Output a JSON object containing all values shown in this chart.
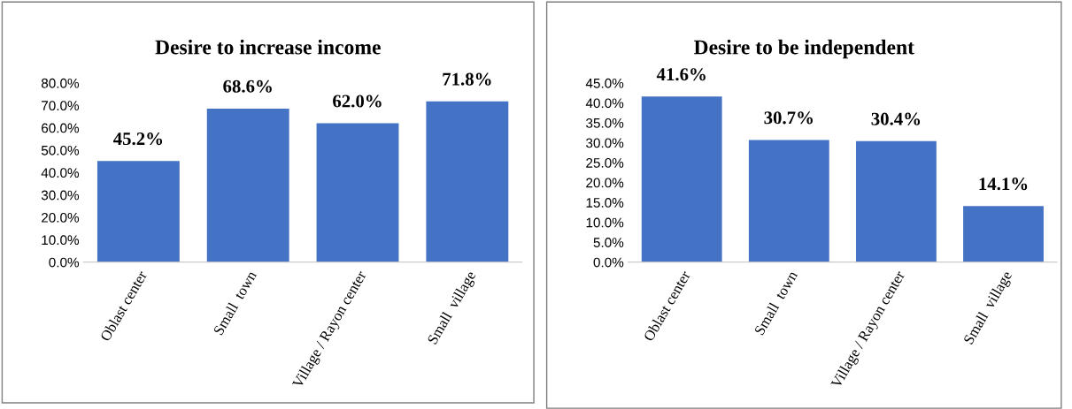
{
  "chart_data": [
    {
      "type": "bar",
      "title": "Desire to increase income",
      "categories": [
        "Oblast center",
        "Small  town",
        "Village / Rayon center",
        "Small  village"
      ],
      "values": [
        45.2,
        68.6,
        62.0,
        71.8
      ],
      "value_labels": [
        "45.2%",
        "68.6%",
        "62.0%",
        "71.8%"
      ],
      "color": "#4472c4",
      "ylim": [
        0,
        80
      ],
      "yticks": [
        {
          "value": 0,
          "label": "0.0%"
        },
        {
          "value": 10,
          "label": "10.0%"
        },
        {
          "value": 20,
          "label": "20.0%"
        },
        {
          "value": 30,
          "label": "30.0%"
        },
        {
          "value": 40,
          "label": "40.0%"
        },
        {
          "value": 50,
          "label": "50.0%"
        },
        {
          "value": 60,
          "label": "60.0%"
        },
        {
          "value": 70,
          "label": "70.0%"
        },
        {
          "value": 80,
          "label": "80.0%"
        }
      ],
      "grid": false,
      "legend": false
    },
    {
      "type": "bar",
      "title": "Desire to be independent",
      "categories": [
        "Oblast center",
        "Small  town",
        "Village / Rayon center",
        "Small  village"
      ],
      "values": [
        41.6,
        30.7,
        30.4,
        14.1
      ],
      "value_labels": [
        "41.6%",
        "30.7%",
        "30.4%",
        "14.1%"
      ],
      "color": "#4472c4",
      "ylim": [
        0,
        45
      ],
      "yticks": [
        {
          "value": 0,
          "label": "0.0%"
        },
        {
          "value": 5,
          "label": "5.0%"
        },
        {
          "value": 10,
          "label": "10.0%"
        },
        {
          "value": 15,
          "label": "15.0%"
        },
        {
          "value": 20,
          "label": "20.0%"
        },
        {
          "value": 25,
          "label": "25.0%"
        },
        {
          "value": 30,
          "label": "30.0%"
        },
        {
          "value": 35,
          "label": "35.0%"
        },
        {
          "value": 40,
          "label": "40.0%"
        },
        {
          "value": 45,
          "label": "45.0%"
        }
      ],
      "grid": false,
      "legend": false
    }
  ]
}
